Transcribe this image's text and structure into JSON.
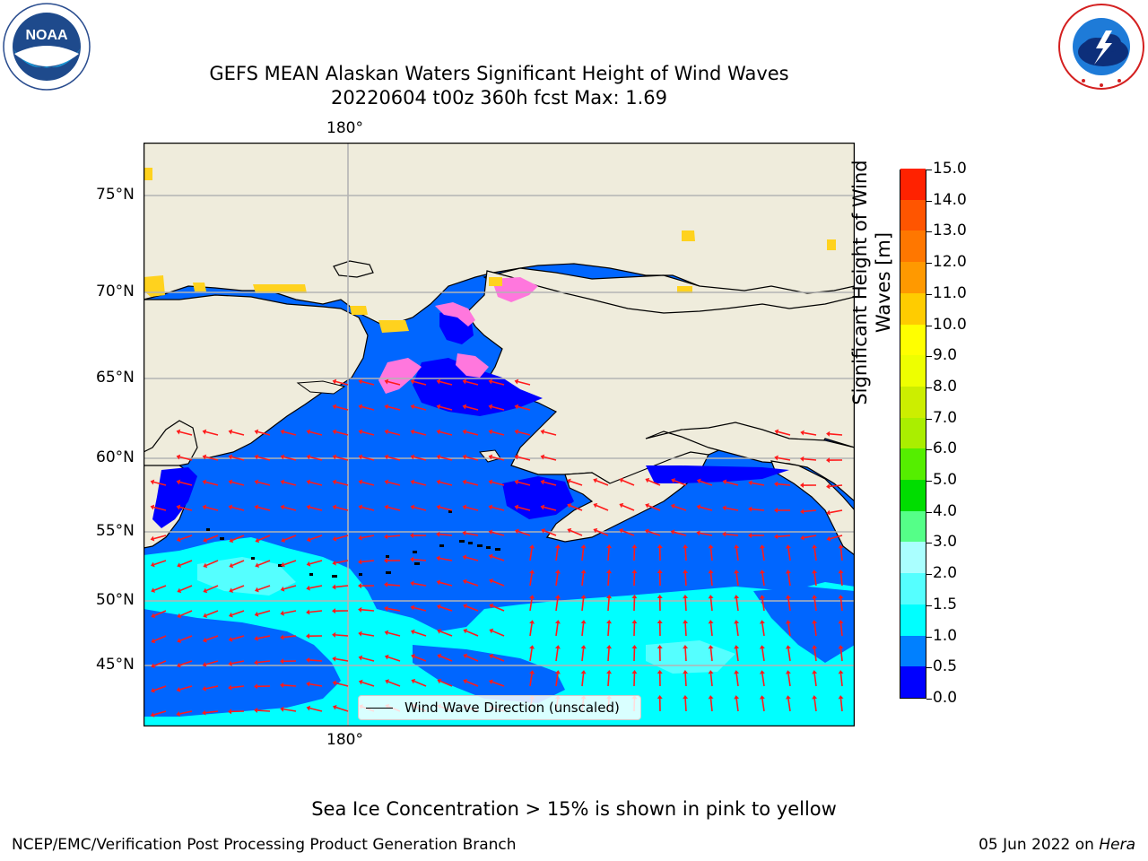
{
  "header": {
    "title": "GEFS MEAN Alaskan Waters Significant Height of Wind Waves",
    "subtitle": "20220604 t00z 360h fcst   Max: 1.69"
  },
  "logos": {
    "noaa": {
      "text": "NOAA",
      "ring_text": "NATIONAL OCEANIC AND ATMOSPHERIC ADMINISTRATION · U.S. DEPARTMENT OF COMMERCE"
    },
    "nws": {
      "ring_text": "NATIONAL WEATHER SERVICE"
    }
  },
  "map": {
    "lon_label_top": "180°",
    "lon_label_bottom": "180°",
    "lat_labels": [
      "75°N",
      "70°N",
      "65°N",
      "60°N",
      "55°N",
      "50°N",
      "45°N"
    ],
    "legend_label": "Wind Wave Direction (unscaled)",
    "colors": {
      "land": "#efecdc",
      "ocean_low": "#0066ff",
      "ocean_mid": "#00ffff",
      "ocean_mid2": "#55ffff",
      "near_zero": "#0000ff",
      "ice_pink": "#ff77dd",
      "ice_yellow": "#ffd21e",
      "arrow": "#ff1a1a",
      "grid": "#b4b4b4"
    }
  },
  "colorbar": {
    "title": "Significant Height of Wind Waves [m]",
    "ticks": [
      "0.0",
      "0.5",
      "1.0",
      "1.5",
      "2.0",
      "3.0",
      "4.0",
      "5.0",
      "6.0",
      "7.0",
      "8.0",
      "9.0",
      "10.0",
      "11.0",
      "12.0",
      "13.0",
      "14.0",
      "15.0"
    ],
    "colors": [
      "#0000ff",
      "#0080ff",
      "#00ffff",
      "#55ffff",
      "#aaffff",
      "#55ff88",
      "#00dd00",
      "#55ee00",
      "#aaee00",
      "#ccee00",
      "#eeff00",
      "#ffff00",
      "#ffcc00",
      "#ff9900",
      "#ff7700",
      "#ff5500",
      "#ff2200",
      "#ff0000"
    ]
  },
  "footer": {
    "note": "Sea Ice Concentration > 15% is shown in pink to yellow",
    "left": "NCEP/EMC/Verification Post Processing Product Generation Branch",
    "right_prefix": "05 Jun 2022 on ",
    "right_host": "Hera"
  }
}
